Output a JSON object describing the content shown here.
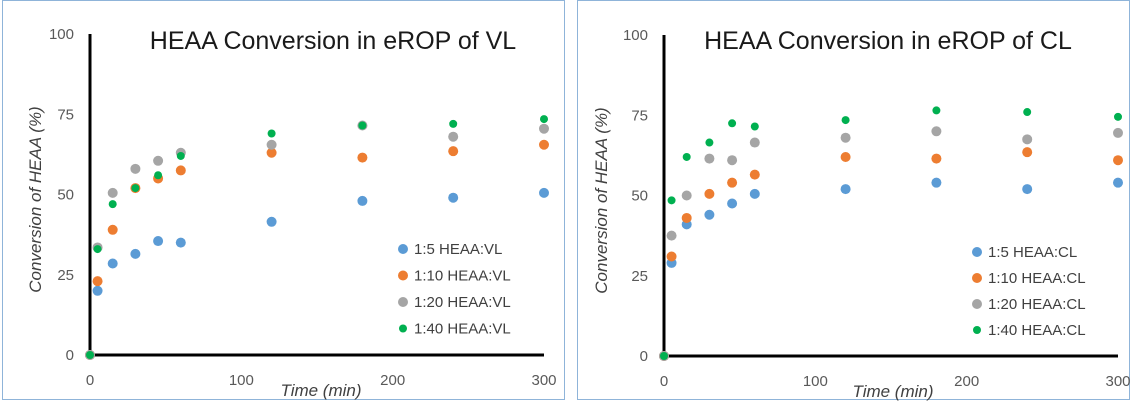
{
  "chart_data": [
    {
      "type": "scatter",
      "title": "HEAA Conversion in eROP of VL",
      "xlabel": "Time (min)",
      "ylabel": "Conversion of HEAA (%)",
      "xlim": [
        0,
        300
      ],
      "ylim": [
        0,
        100
      ],
      "xticks": [
        "0",
        "100",
        "200",
        "300"
      ],
      "yticks": [
        "0",
        "25",
        "50",
        "75",
        "100"
      ],
      "grid": false,
      "legend_position": "bottom-right",
      "series": [
        {
          "name": "1:5 HEAA:VL",
          "color": "#5b9bd5",
          "points": [
            [
              0,
              0
            ],
            [
              5,
              20
            ],
            [
              15,
              28.5
            ],
            [
              30,
              31.5
            ],
            [
              45,
              35.5
            ],
            [
              60,
              35
            ],
            [
              120,
              41.5
            ],
            [
              180,
              48
            ],
            [
              240,
              49
            ],
            [
              300,
              50.5
            ]
          ]
        },
        {
          "name": "1:10 HEAA:VL",
          "color": "#ed7d31",
          "points": [
            [
              0,
              0
            ],
            [
              5,
              23
            ],
            [
              15,
              39
            ],
            [
              30,
              52
            ],
            [
              45,
              55
            ],
            [
              60,
              57.5
            ],
            [
              120,
              63
            ],
            [
              180,
              61.5
            ],
            [
              240,
              63.5
            ],
            [
              300,
              65.5
            ]
          ]
        },
        {
          "name": "1:20 HEAA:VL",
          "color": "#a5a5a5",
          "points": [
            [
              0,
              0
            ],
            [
              5,
              33.5
            ],
            [
              15,
              50.5
            ],
            [
              30,
              58
            ],
            [
              45,
              60.5
            ],
            [
              60,
              63
            ],
            [
              120,
              65.5
            ],
            [
              180,
              71.5
            ],
            [
              240,
              68
            ],
            [
              300,
              70.5
            ]
          ]
        },
        {
          "name": "1:40 HEAA:VL",
          "color": "#00b050",
          "points": [
            [
              0,
              0
            ],
            [
              5,
              33
            ],
            [
              15,
              47
            ],
            [
              30,
              52
            ],
            [
              45,
              56
            ],
            [
              60,
              62
            ],
            [
              120,
              69
            ],
            [
              180,
              71.5
            ],
            [
              240,
              72
            ],
            [
              300,
              73.5
            ]
          ]
        }
      ]
    },
    {
      "type": "scatter",
      "title": "HEAA Conversion in eROP of CL",
      "xlabel": "Time (min)",
      "ylabel": "Conversion of HEAA (%)",
      "xlim": [
        0,
        300
      ],
      "ylim": [
        0,
        100
      ],
      "xticks": [
        "0",
        "100",
        "200",
        "300"
      ],
      "yticks": [
        "0",
        "25",
        "50",
        "75",
        "100"
      ],
      "grid": false,
      "legend_position": "bottom-right",
      "series": [
        {
          "name": "1:5 HEAA:CL",
          "color": "#5b9bd5",
          "points": [
            [
              0,
              0
            ],
            [
              5,
              29
            ],
            [
              15,
              41
            ],
            [
              30,
              44
            ],
            [
              45,
              47.5
            ],
            [
              60,
              50.5
            ],
            [
              120,
              52
            ],
            [
              180,
              54
            ],
            [
              240,
              52
            ],
            [
              300,
              54
            ]
          ]
        },
        {
          "name": "1:10 HEAA:CL",
          "color": "#ed7d31",
          "points": [
            [
              0,
              0
            ],
            [
              5,
              31
            ],
            [
              15,
              43
            ],
            [
              30,
              50.5
            ],
            [
              45,
              54
            ],
            [
              60,
              56.5
            ],
            [
              120,
              62
            ],
            [
              180,
              61.5
            ],
            [
              240,
              63.5
            ],
            [
              300,
              61
            ]
          ]
        },
        {
          "name": "1:20 HEAA:CL",
          "color": "#a5a5a5",
          "points": [
            [
              0,
              0
            ],
            [
              5,
              37.5
            ],
            [
              15,
              50
            ],
            [
              30,
              61.5
            ],
            [
              45,
              61
            ],
            [
              60,
              66.5
            ],
            [
              120,
              68
            ],
            [
              180,
              70
            ],
            [
              240,
              67.5
            ],
            [
              300,
              69.5
            ]
          ]
        },
        {
          "name": "1:40 HEAA:CL",
          "color": "#00b050",
          "points": [
            [
              0,
              0
            ],
            [
              5,
              48.5
            ],
            [
              15,
              62
            ],
            [
              30,
              66.5
            ],
            [
              45,
              72.5
            ],
            [
              60,
              71.5
            ],
            [
              120,
              73.5
            ],
            [
              180,
              76.5
            ],
            [
              240,
              76
            ],
            [
              300,
              74.5
            ]
          ]
        }
      ]
    }
  ]
}
